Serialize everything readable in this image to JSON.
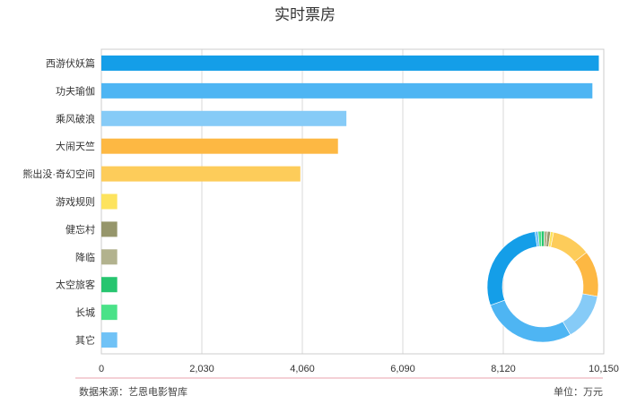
{
  "chart_data": {
    "type": "bar",
    "orientation": "horizontal",
    "title": "实时票房",
    "categories": [
      "西游伏妖篇",
      "功夫瑜伽",
      "乘风破浪",
      "大闹天竺",
      "熊出没·奇幻空间",
      "游戏规则",
      "健忘村",
      "降临",
      "太空旅客",
      "长城",
      "其它"
    ],
    "values": [
      10050,
      9920,
      4950,
      4780,
      4020,
      320,
      320,
      320,
      320,
      320,
      320
    ],
    "colors": [
      "#149ee8",
      "#4eb5f3",
      "#86cbf7",
      "#fdb843",
      "#fdcc5a",
      "#fde35e",
      "#96966b",
      "#b2b28e",
      "#26c56f",
      "#4ae288",
      "#70c2f6"
    ],
    "xticks": [
      "0",
      "2,030",
      "4,060",
      "6,090",
      "8,120",
      "10,150"
    ],
    "xlim": [
      0,
      10150
    ],
    "grid": true,
    "donut": {
      "values": [
        10050,
        9920,
        4950,
        4780,
        4020,
        320,
        320,
        320,
        320,
        320,
        320
      ]
    }
  },
  "footer": {
    "source": "数据来源：艺恩电影智库",
    "unit": "单位：万元"
  }
}
